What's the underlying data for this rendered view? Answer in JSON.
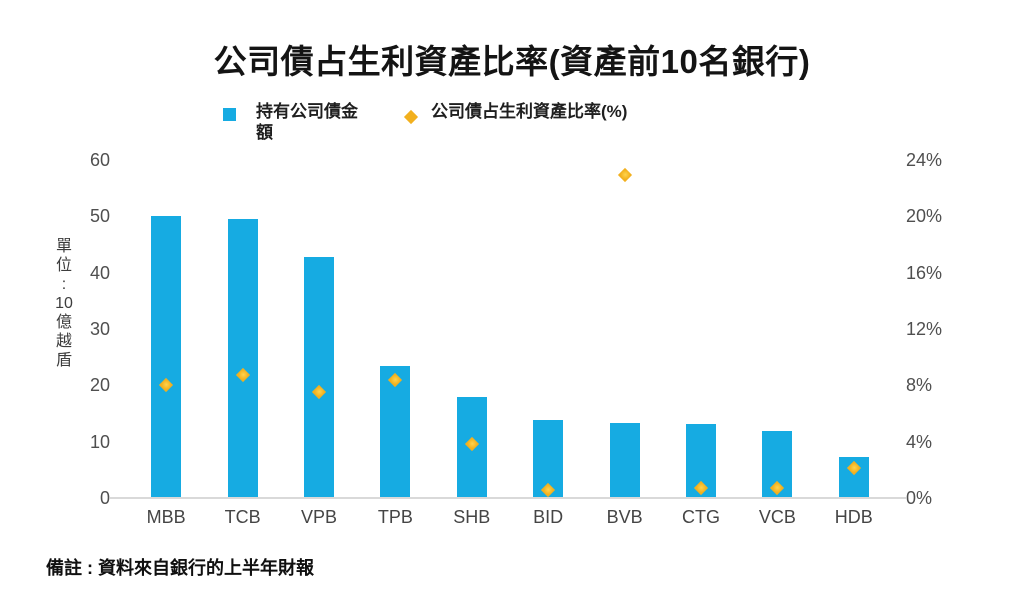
{
  "title": "公司債占生利資產比率(資產前10名銀行)",
  "legend": {
    "items": [
      {
        "label": "持有公司債金額",
        "marker": "square",
        "color": "#16ABE2"
      },
      {
        "label": "公司債占生利資產比率(%)",
        "marker": "diamond",
        "color": "#F2B01E"
      }
    ]
  },
  "left_axis": {
    "unit_label": "單位:10億越盾",
    "unit_label_lines": [
      "單",
      "位",
      ":",
      "10",
      "億",
      "越",
      "盾"
    ],
    "ticks": [
      "60",
      "50",
      "40",
      "30",
      "20",
      "10",
      "0"
    ]
  },
  "right_axis": {
    "ticks": [
      "24%",
      "20%",
      "16%",
      "12%",
      "8%",
      "4%",
      "0%"
    ]
  },
  "footnote": "備註 : 資料來自銀行的上半年財報",
  "colors": {
    "bar": "#16ABE2",
    "marker": "#F2B01E",
    "axis_text": "#4F4F4F",
    "baseline": "#D9D9D9",
    "title_text": "#141414"
  },
  "chart_data": {
    "type": "bar",
    "title": "公司債占生利資產比率(資產前10名銀行)",
    "categories": [
      "MBB",
      "TCB",
      "VPB",
      "TPB",
      "SHB",
      "BID",
      "BVB",
      "CTG",
      "VCB",
      "HDB"
    ],
    "series": [
      {
        "name": "持有公司債金額",
        "type": "bar",
        "axis": "left",
        "unit": "10億越盾",
        "color": "#16ABE2",
        "values": [
          50,
          49.5,
          42.7,
          23.4,
          18,
          13.8,
          13.3,
          13.2,
          11.9,
          7.2
        ]
      },
      {
        "name": "公司債占生利資產比率(%)",
        "type": "scatter",
        "marker": "diamond",
        "axis": "right",
        "unit": "%",
        "color": "#F2B01E",
        "values": [
          8.0,
          8.7,
          7.5,
          8.4,
          3.8,
          0.6,
          22.9,
          0.7,
          0.7,
          2.1
        ]
      }
    ],
    "left_ylim": [
      0,
      60
    ],
    "right_ylim": [
      0,
      24
    ],
    "left_tick_step": 10,
    "right_tick_step": 4,
    "grid": false,
    "legend_position": "top",
    "xlabel": "",
    "ylabel_left": "單位:10億越盾",
    "ylabel_right": ""
  }
}
